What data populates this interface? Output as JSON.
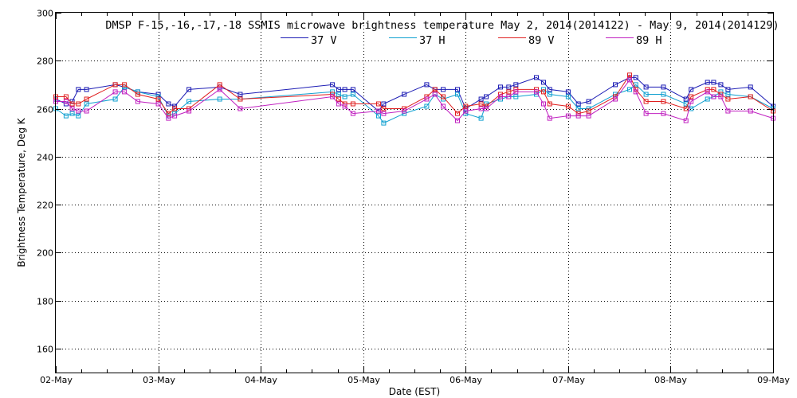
{
  "chart_data": {
    "type": "line",
    "title": "DMSP F-15,-16,-17,-18 SSMIS microwave brightness temperature May  2, 2014(2014122) - May  9, 2014(2014129)",
    "xlabel": "Date (EST)",
    "ylabel": "Brightness Temperature, Deg K",
    "xlim": [
      0,
      7
    ],
    "ylim": [
      150,
      300
    ],
    "yticks": [
      160,
      180,
      200,
      220,
      240,
      260,
      280,
      300
    ],
    "xtick_labels": [
      "02-May",
      "03-May",
      "04-May",
      "05-May",
      "06-May",
      "07-May",
      "08-May",
      "09-May"
    ],
    "grid": true,
    "legend_position": "top",
    "x": [
      0.0,
      0.1,
      0.16,
      0.22,
      0.3,
      0.58,
      0.67,
      0.8,
      1.0,
      1.1,
      1.16,
      1.3,
      1.6,
      1.8,
      2.7,
      2.76,
      2.82,
      2.9,
      3.15,
      3.2,
      3.4,
      3.62,
      3.7,
      3.78,
      3.92,
      4.0,
      4.15,
      4.2,
      4.34,
      4.42,
      4.49,
      4.69,
      4.76,
      4.82,
      5.0,
      5.1,
      5.2,
      5.46,
      5.6,
      5.66,
      5.76,
      5.93,
      6.15,
      6.2,
      6.36,
      6.42,
      6.49,
      6.56,
      6.78,
      7.0
    ],
    "series": [
      {
        "name": "37 V",
        "color": "#1c1cb4",
        "values": [
          264,
          262,
          263,
          268,
          268,
          270,
          269,
          267,
          266,
          262,
          261,
          268,
          269,
          266,
          270,
          268,
          268,
          268,
          259,
          262,
          266,
          270,
          268,
          268,
          268,
          260,
          264,
          265,
          269,
          269,
          270,
          273,
          271,
          268,
          267,
          262,
          263,
          270,
          273,
          273,
          269,
          269,
          264,
          268,
          271,
          271,
          270,
          268,
          269,
          261
        ]
      },
      {
        "name": "37 H",
        "color": "#10a0d0",
        "values": [
          260,
          257,
          258,
          257,
          262,
          264,
          269,
          267,
          265,
          257,
          258,
          263,
          264,
          264,
          267,
          266,
          265,
          266,
          257,
          254,
          258,
          261,
          266,
          264,
          266,
          258,
          256,
          262,
          264,
          265,
          265,
          266,
          268,
          266,
          265,
          260,
          260,
          266,
          268,
          270,
          266,
          266,
          262,
          260,
          264,
          265,
          267,
          266,
          265,
          260
        ]
      },
      {
        "name": "89 V",
        "color": "#e02020",
        "values": [
          265,
          265,
          262,
          262,
          264,
          270,
          270,
          266,
          264,
          258,
          260,
          260,
          270,
          264,
          266,
          264,
          262,
          262,
          262,
          260,
          260,
          265,
          268,
          265,
          258,
          261,
          262,
          261,
          266,
          267,
          268,
          268,
          267,
          262,
          261,
          258,
          259,
          265,
          274,
          268,
          263,
          263,
          260,
          265,
          268,
          268,
          266,
          264,
          265,
          259
        ]
      },
      {
        "name": "89 H",
        "color": "#c020c0",
        "values": [
          263,
          263,
          260,
          259,
          259,
          267,
          267,
          263,
          262,
          256,
          257,
          259,
          268,
          260,
          265,
          262,
          261,
          258,
          259,
          258,
          259,
          264,
          266,
          261,
          255,
          259,
          260,
          260,
          265,
          265,
          267,
          267,
          262,
          256,
          257,
          257,
          257,
          264,
          272,
          267,
          258,
          258,
          255,
          263,
          267,
          265,
          265,
          259,
          259,
          256
        ]
      }
    ]
  }
}
